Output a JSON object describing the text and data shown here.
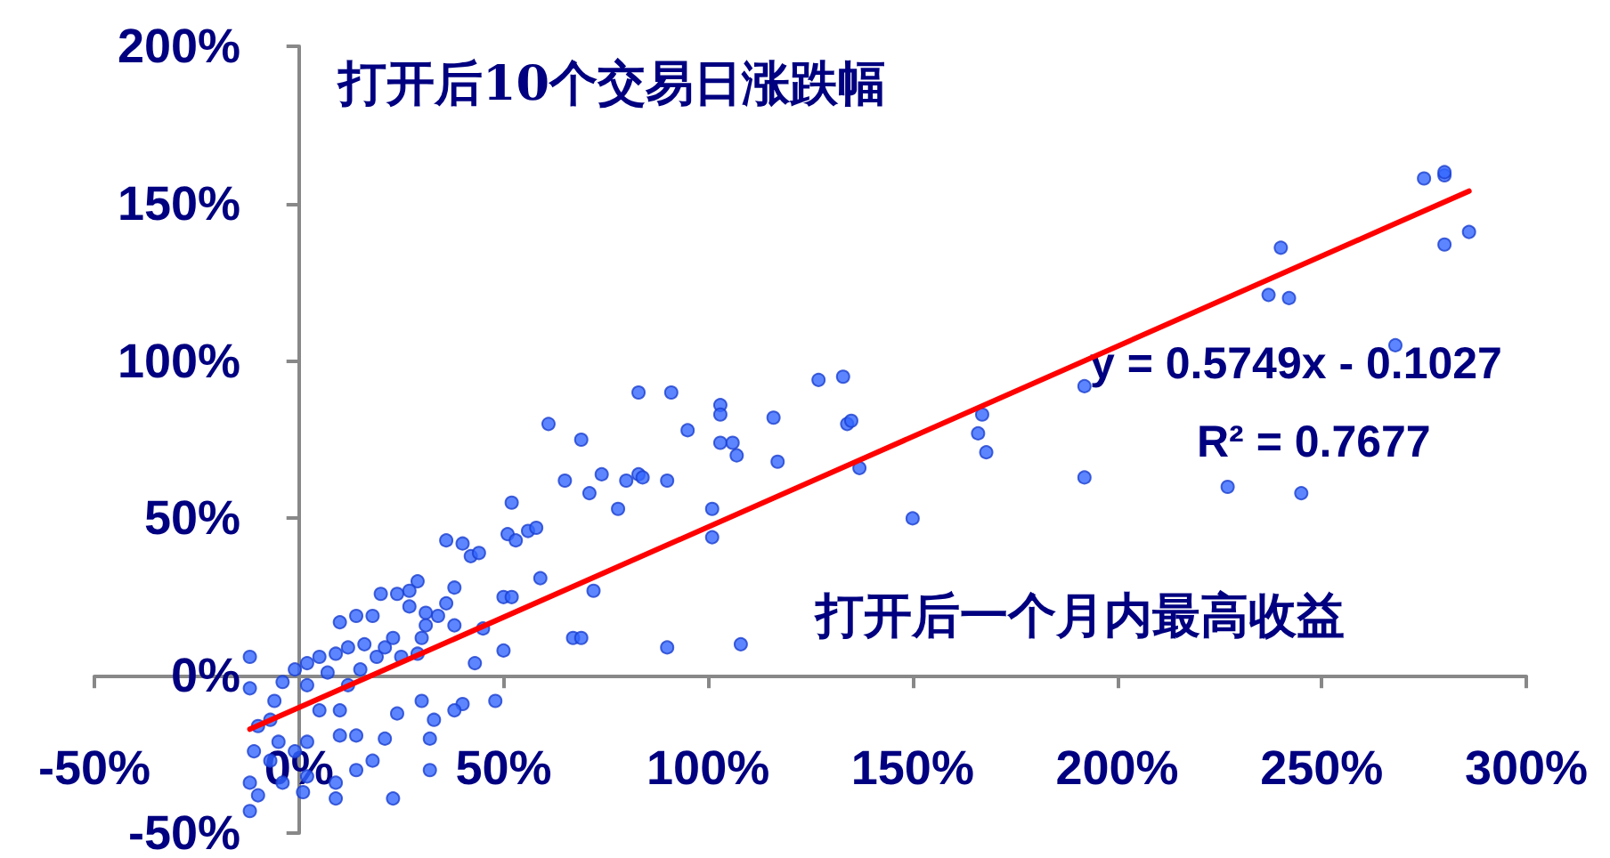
{
  "chart_data": {
    "type": "scatter",
    "xlabel": "打开后一个月内最高收益",
    "ylabel": "打开后10个交易日涨跌幅",
    "annotations": [
      "y = 0.5749x - 0.1027",
      "R² = 0.7677"
    ],
    "xlim": [
      -50,
      300
    ],
    "xticks": [
      {
        "value": -50,
        "label": "-50%"
      },
      {
        "value": 0,
        "label": "0%"
      },
      {
        "value": 50,
        "label": "50%"
      },
      {
        "value": 100,
        "label": "100%"
      },
      {
        "value": 150,
        "label": "150%"
      },
      {
        "value": 200,
        "label": "200%"
      },
      {
        "value": 250,
        "label": "250%"
      },
      {
        "value": 300,
        "label": "300%"
      }
    ],
    "ylim": [
      -50,
      200
    ],
    "yticks": [
      {
        "value": -50,
        "label": "-50%"
      },
      {
        "value": 0,
        "label": "0%"
      },
      {
        "value": 50,
        "label": "50%"
      },
      {
        "value": 100,
        "label": "100%"
      },
      {
        "value": 150,
        "label": "150%"
      },
      {
        "value": 200,
        "label": "200%"
      }
    ],
    "marker": "circle",
    "series": [
      {
        "type": "scatter",
        "color": "#3366ff",
        "x": [
          275,
          280,
          280,
          280,
          286,
          240,
          237,
          242,
          268,
          192,
          192,
          227,
          245,
          166,
          167,
          168,
          150,
          127,
          133,
          134,
          135,
          137,
          103,
          103,
          103,
          106,
          107,
          116,
          117,
          101,
          101,
          95,
          90,
          91,
          83,
          83,
          84,
          80,
          78,
          74,
          71,
          69,
          65,
          61,
          72,
          67,
          69,
          90,
          108,
          52,
          51,
          53,
          56,
          58,
          59,
          50,
          52,
          50,
          48,
          43,
          45,
          36,
          40,
          42,
          44,
          38,
          36,
          34,
          38,
          31,
          31,
          29,
          27,
          27,
          24,
          23,
          20,
          18,
          14,
          10,
          9,
          5,
          2,
          33,
          32,
          32,
          40,
          38,
          30,
          24,
          21,
          23,
          18,
          14,
          9,
          9,
          1,
          2,
          -4,
          -7,
          -10,
          -12,
          -12,
          -11,
          -10,
          -12,
          -12,
          -6,
          -4,
          -1,
          2,
          5,
          10,
          12,
          15,
          19,
          21,
          25,
          29,
          30,
          16,
          12,
          7,
          14,
          10,
          2,
          -1,
          -5,
          -7
        ],
        "values": [
          158,
          159,
          160,
          137,
          141,
          136,
          121,
          120,
          105,
          92,
          63,
          60,
          58,
          77,
          83,
          71,
          50,
          94,
          95,
          80,
          81,
          66,
          86,
          83,
          74,
          74,
          70,
          82,
          68,
          53,
          44,
          78,
          62,
          90,
          90,
          64,
          63,
          62,
          53,
          64,
          58,
          75,
          62,
          80,
          27,
          12,
          12,
          9,
          10,
          55,
          45,
          43,
          46,
          47,
          31,
          25,
          25,
          8,
          -8,
          4,
          15,
          43,
          42,
          38,
          39,
          28,
          23,
          19,
          16,
          16,
          20,
          30,
          27,
          22,
          26,
          12,
          26,
          19,
          19,
          17,
          7,
          6,
          4,
          -14,
          -20,
          -30,
          -9,
          -11,
          -8,
          -12,
          -20,
          -39,
          -27,
          -30,
          -34,
          -39,
          -37,
          -32,
          -34,
          -27,
          -38,
          -43,
          -34,
          -24,
          -16,
          -4,
          6,
          -8,
          -2,
          2,
          -3,
          -11,
          -11,
          -3,
          2,
          6,
          9,
          6,
          7,
          12,
          10,
          9,
          1,
          -19,
          -19,
          -21,
          -24,
          -21,
          -14
        ]
      },
      {
        "type": "line",
        "color": "#ff0000",
        "marker": "none",
        "line_style": "solid",
        "x": [
          -12,
          286
        ],
        "values": [
          -17,
          154
        ]
      }
    ]
  }
}
